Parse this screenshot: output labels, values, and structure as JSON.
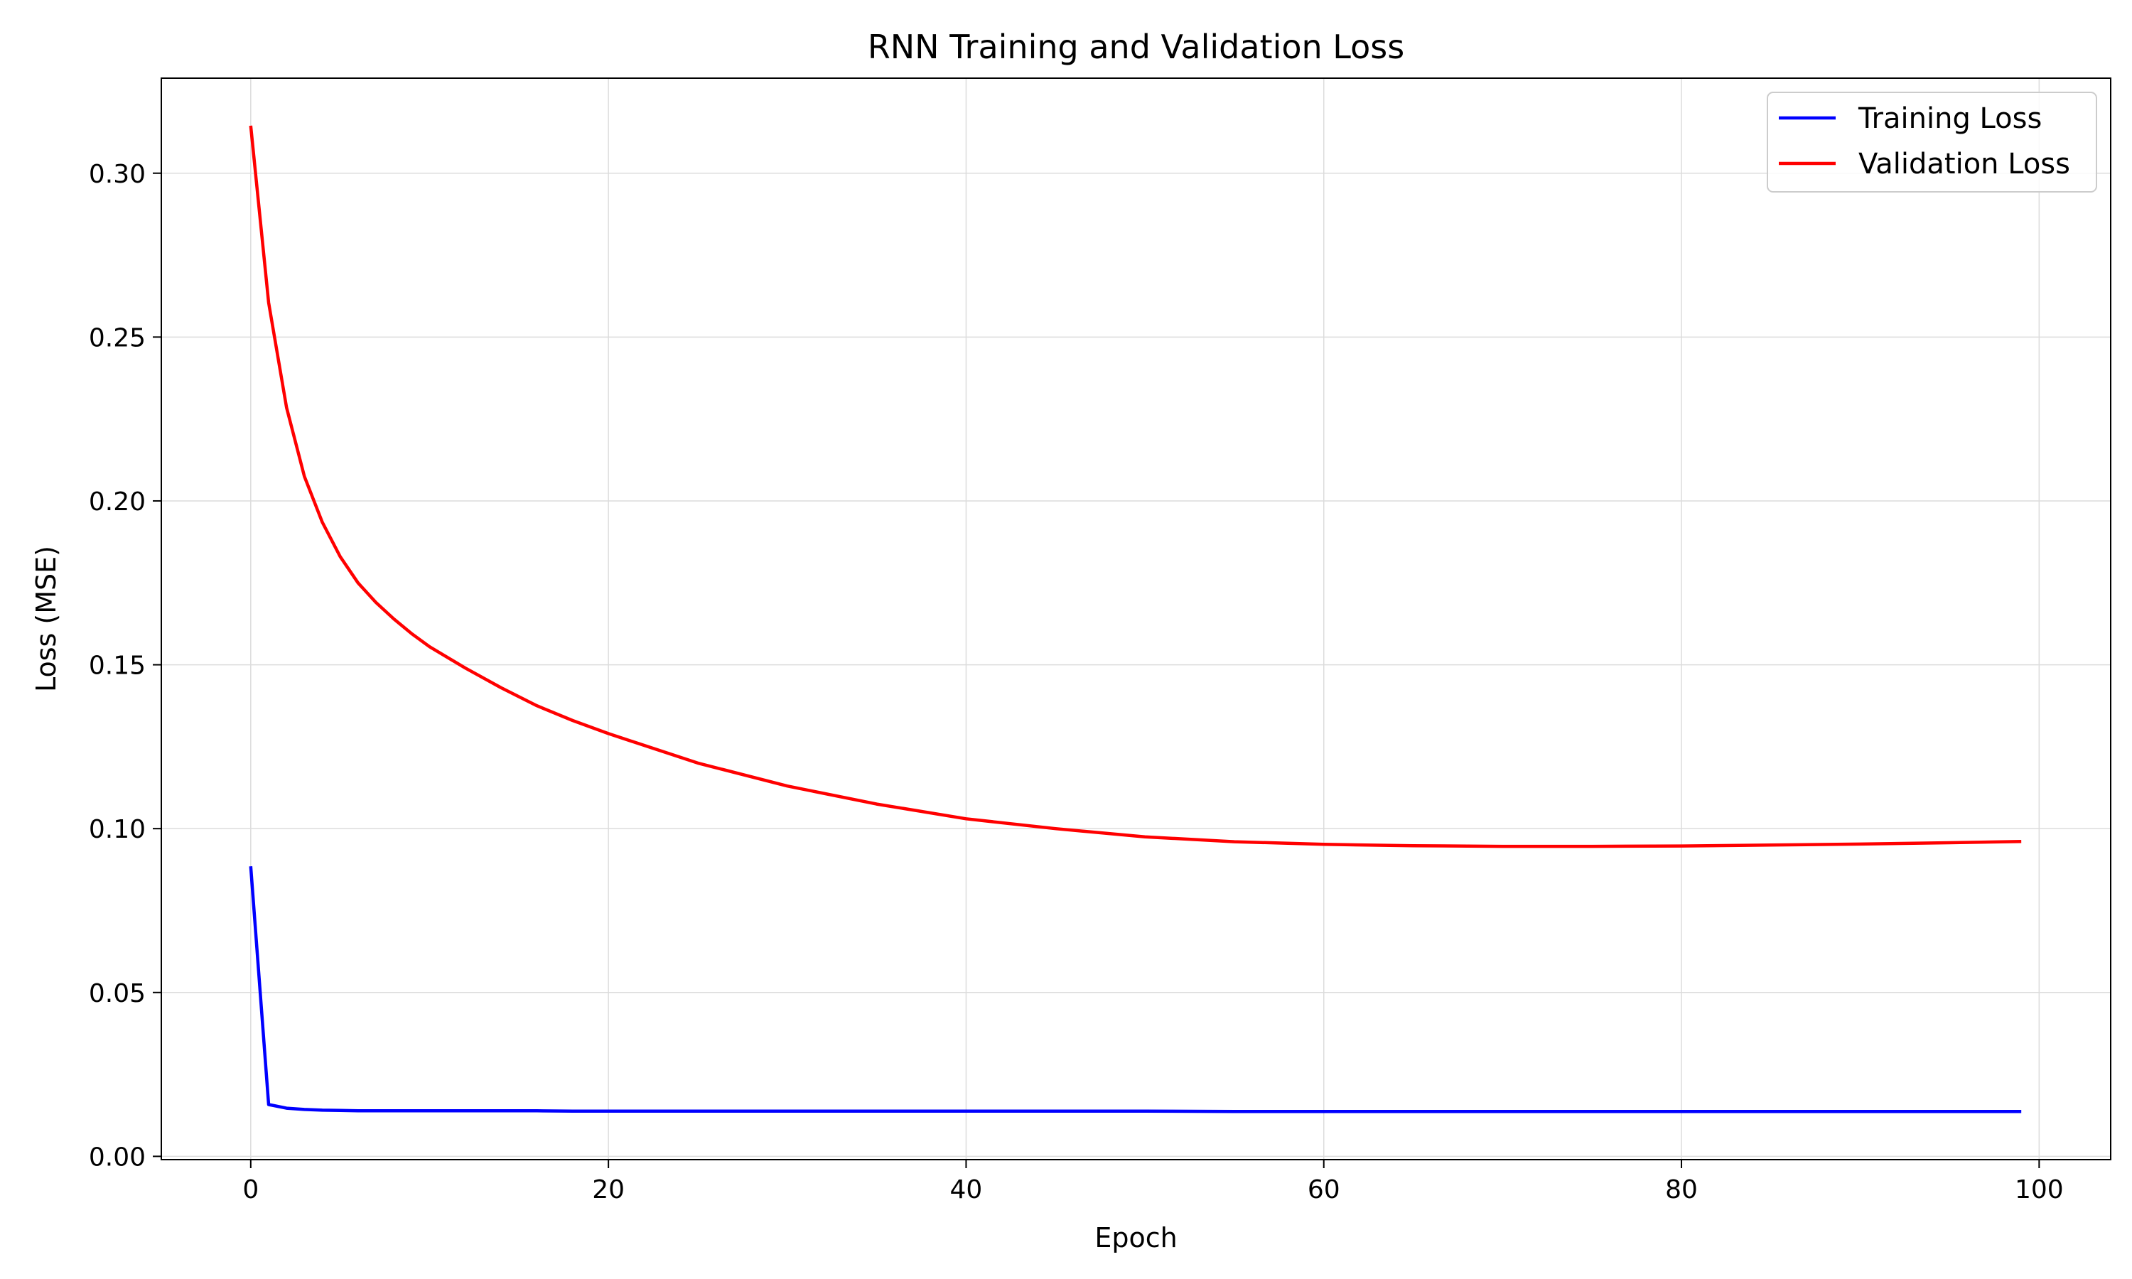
{
  "chart_data": {
    "type": "line",
    "title": "RNN Training and Validation Loss",
    "xlabel": "Epoch",
    "ylabel": "Loss (MSE)",
    "xlim": [
      -5,
      104
    ],
    "ylim": [
      -0.001,
      0.329
    ],
    "xticks": [
      0,
      20,
      40,
      60,
      80,
      100
    ],
    "yticks": [
      0.0,
      0.05,
      0.1,
      0.15,
      0.2,
      0.25,
      0.3
    ],
    "xtick_labels": [
      "0",
      "20",
      "40",
      "60",
      "80",
      "100"
    ],
    "ytick_labels": [
      "0.00",
      "0.05",
      "0.10",
      "0.15",
      "0.20",
      "0.25",
      "0.30"
    ],
    "grid": true,
    "legend": "top-right",
    "x": [
      0,
      1,
      2,
      3,
      4,
      5,
      6,
      7,
      8,
      9,
      10,
      12,
      14,
      16,
      18,
      20,
      25,
      30,
      35,
      40,
      45,
      50,
      55,
      60,
      65,
      70,
      75,
      80,
      85,
      90,
      95,
      99
    ],
    "series": [
      {
        "name": "Training Loss",
        "color": "#0000ff",
        "values": [
          0.0885,
          0.0158,
          0.0147,
          0.0143,
          0.0141,
          0.014,
          0.0139,
          0.0139,
          0.0139,
          0.0139,
          0.0139,
          0.0139,
          0.0139,
          0.0139,
          0.0138,
          0.0138,
          0.0138,
          0.0138,
          0.0138,
          0.0138,
          0.0138,
          0.0138,
          0.0137,
          0.0137,
          0.0137,
          0.0137,
          0.0137,
          0.0137,
          0.0137,
          0.0137,
          0.0137,
          0.0137
        ]
      },
      {
        "name": "Validation Loss",
        "color": "#ff0000",
        "values": [
          0.3145,
          0.2605,
          0.2285,
          0.2075,
          0.1935,
          0.183,
          0.175,
          0.169,
          0.164,
          0.1595,
          0.1555,
          0.149,
          0.143,
          0.1375,
          0.133,
          0.129,
          0.12,
          0.113,
          0.1075,
          0.103,
          0.1,
          0.0975,
          0.096,
          0.0952,
          0.0948,
          0.0946,
          0.0946,
          0.0947,
          0.095,
          0.0953,
          0.0957,
          0.0961
        ]
      }
    ]
  }
}
